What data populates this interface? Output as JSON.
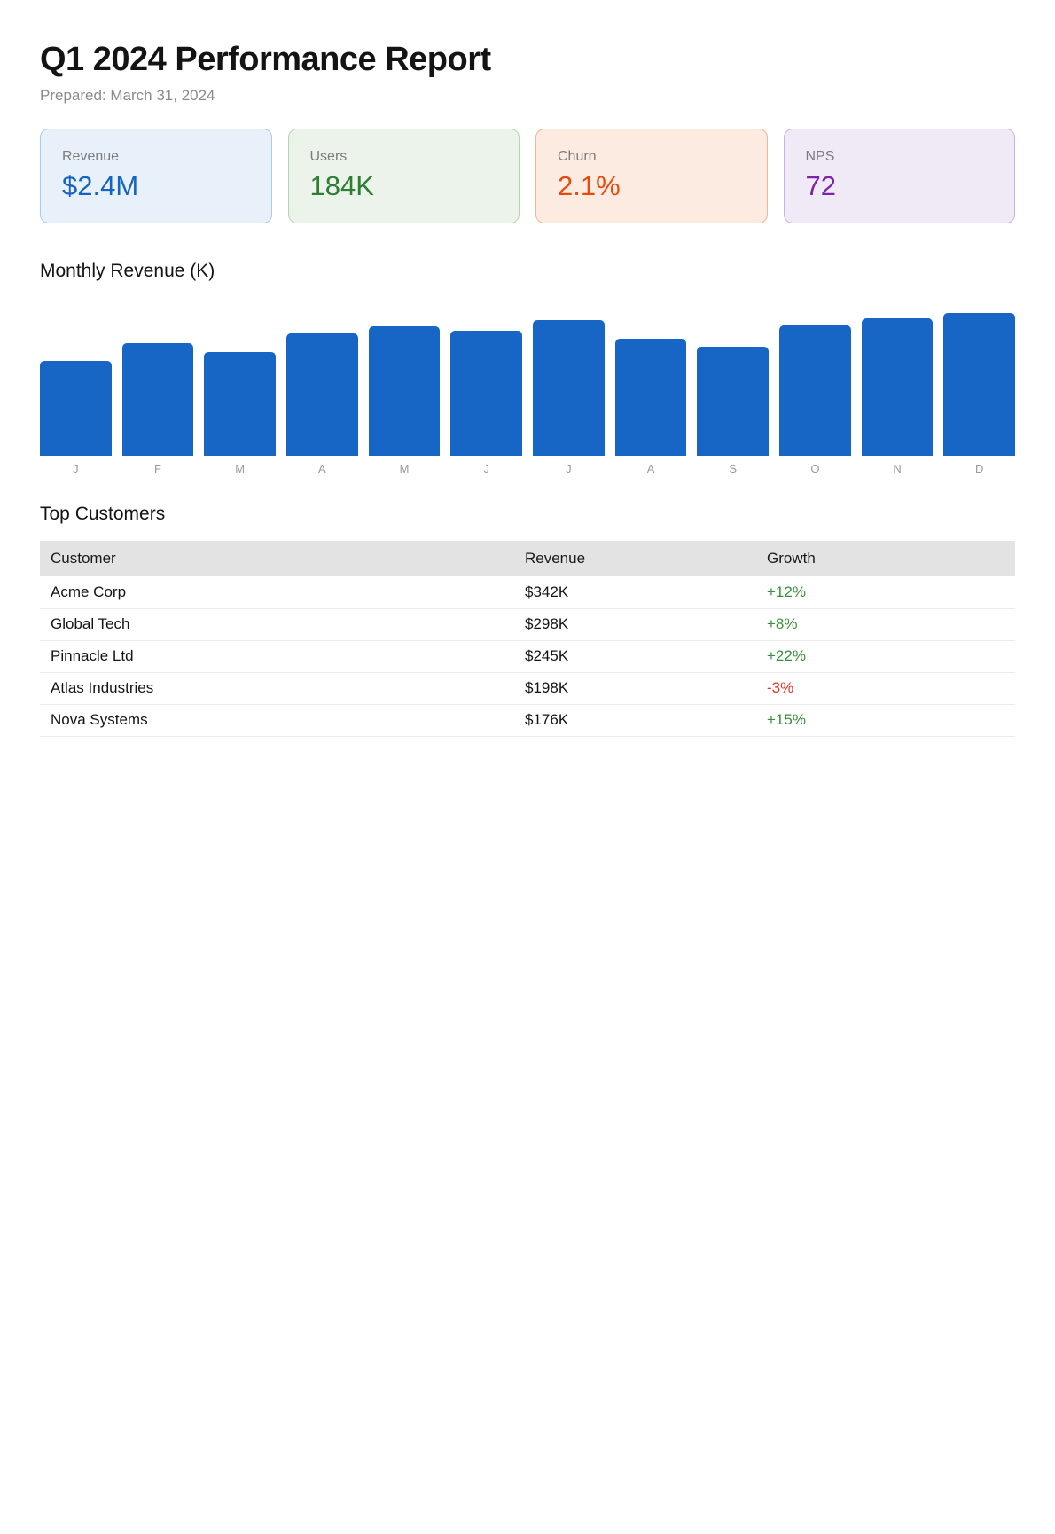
{
  "report": {
    "title": "Q1 2024 Performance Report",
    "prepared": "Prepared: March 31, 2024"
  },
  "kpis": [
    {
      "label": "Revenue",
      "value": "$2.4M",
      "accent": "#1565C0",
      "bg": "#E8F0FA",
      "border": "#ADC9EA"
    },
    {
      "label": "Users",
      "value": "184K",
      "accent": "#2E7D32",
      "bg": "#EBF3EB",
      "border": "#B5D2B3"
    },
    {
      "label": "Churn",
      "value": "2.1%",
      "accent": "#E64A0E",
      "bg": "#FBEBE1",
      "border": "#F2B597"
    },
    {
      "label": "NPS",
      "value": "72",
      "accent": "#7B24A8",
      "bg": "#F0EAF6",
      "border": "#CAB1DF"
    }
  ],
  "chart_data": {
    "type": "bar",
    "title": "Monthly Revenue (K)",
    "categories": [
      "J",
      "F",
      "M",
      "A",
      "M",
      "J",
      "J",
      "A",
      "S",
      "O",
      "N",
      "D"
    ],
    "values": [
      150,
      178,
      164,
      193,
      204,
      197,
      214,
      185,
      172,
      206,
      216,
      225
    ],
    "values_note": "estimated from bar heights; no y-axis shown",
    "ylim": [
      0,
      225
    ],
    "bar_color": "#1766C6",
    "grid": false,
    "legend": false,
    "xlabel": "",
    "ylabel": ""
  },
  "table": {
    "title": "Top Customers",
    "columns": [
      "Customer",
      "Revenue",
      "Growth"
    ],
    "rows": [
      {
        "customer": "Acme Corp",
        "revenue": "$342K",
        "growth": "+12%"
      },
      {
        "customer": "Global Tech",
        "revenue": "$298K",
        "growth": "+8%"
      },
      {
        "customer": "Pinnacle Ltd",
        "revenue": "$245K",
        "growth": "+22%"
      },
      {
        "customer": "Atlas Industries",
        "revenue": "$198K",
        "growth": "-3%"
      },
      {
        "customer": "Nova Systems",
        "revenue": "$176K",
        "growth": "+15%"
      }
    ],
    "positive_color": "#388E3C",
    "negative_color": "#E5322A"
  }
}
